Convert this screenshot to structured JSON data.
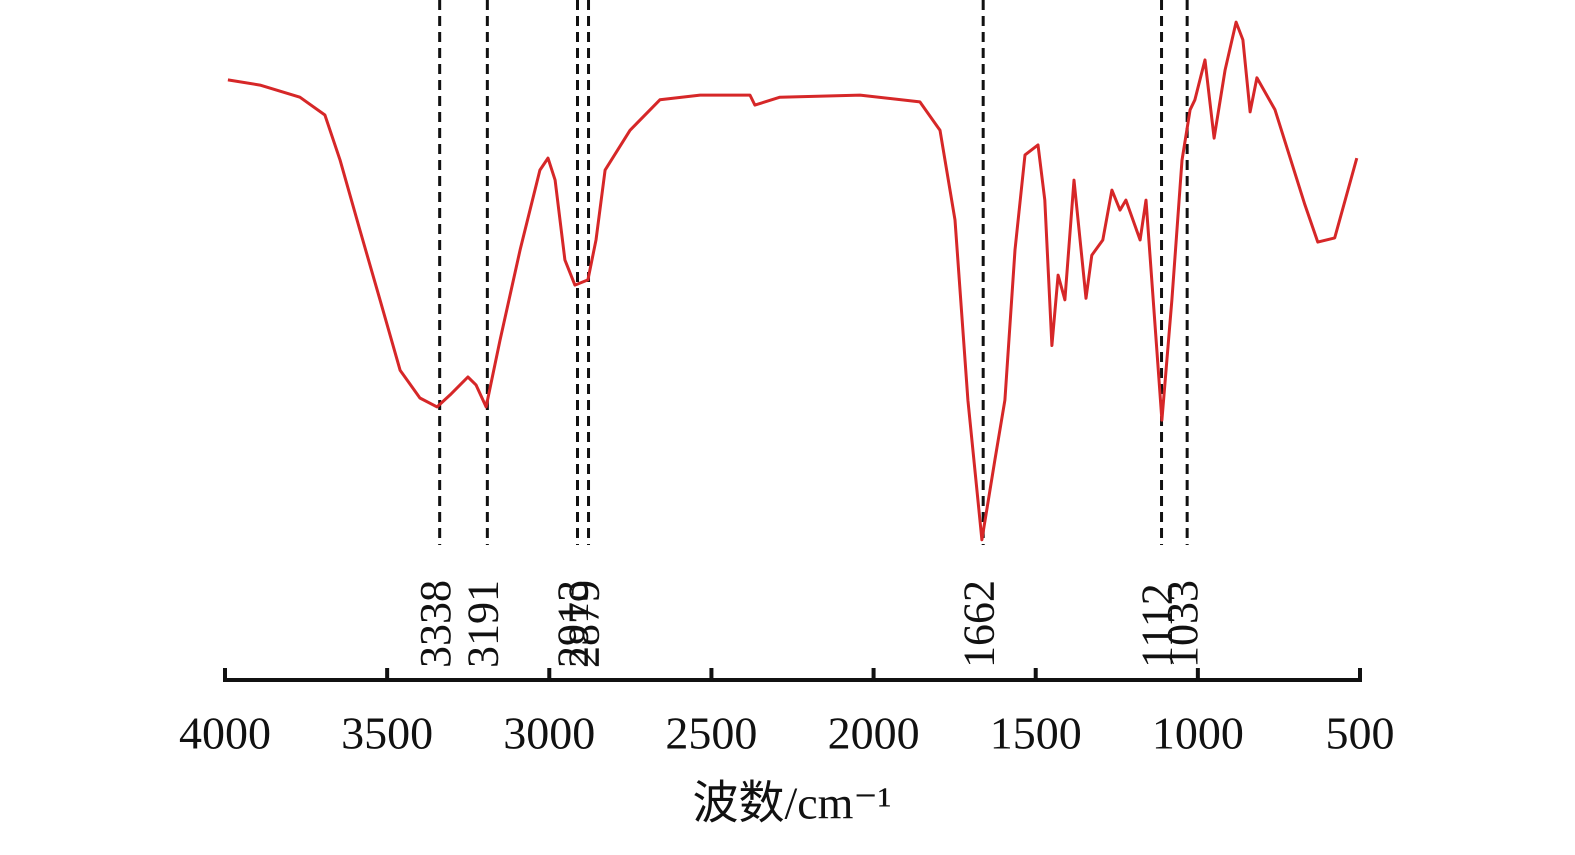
{
  "chart_data": {
    "type": "line",
    "xlabel": "波数/cm⁻¹",
    "xlim": [
      4000,
      500
    ],
    "xticks": [
      4000,
      3500,
      3000,
      2500,
      2000,
      1500,
      1000,
      500
    ],
    "ylim": [
      0,
      100
    ],
    "x": [
      3991,
      3892,
      3769,
      3692,
      3645,
      3584,
      3522,
      3460,
      3399,
      3346,
      3306,
      3251,
      3226,
      3195,
      3152,
      3090,
      3029,
      3004,
      2982,
      2952,
      2921,
      2881,
      2856,
      2828,
      2751,
      2659,
      2535,
      2381,
      2366,
      2289,
      2042,
      1857,
      1795,
      1749,
      1709,
      1666,
      1626,
      1595,
      1564,
      1533,
      1493,
      1472,
      1450,
      1431,
      1410,
      1382,
      1345,
      1327,
      1293,
      1265,
      1240,
      1222,
      1178,
      1160,
      1111,
      1080,
      1049,
      1024,
      1009,
      978,
      950,
      916,
      882,
      861,
      839,
      818,
      762,
      670,
      630,
      578,
      510
    ],
    "series": [
      {
        "color": "#d62728",
        "values": [
          88.6,
          87.6,
          85.3,
          81.9,
          73.3,
          60,
          46.7,
          33.3,
          28,
          26.3,
          28.6,
          32,
          30.5,
          26.3,
          39,
          56.2,
          71.4,
          73.7,
          69.5,
          54.3,
          49.5,
          50.5,
          58.1,
          71.4,
          79,
          84.8,
          85.7,
          85.7,
          83.8,
          85.3,
          85.7,
          84.4,
          79,
          61.9,
          27.6,
          1,
          16.2,
          27.6,
          56.2,
          74.3,
          76.2,
          65.7,
          38,
          51.4,
          46.7,
          69.5,
          47,
          55.2,
          58.1,
          67.6,
          63.8,
          65.7,
          58.1,
          65.7,
          23.8,
          46.7,
          73.3,
          82.9,
          84.8,
          92.4,
          77.5,
          90.5,
          99.6,
          96.2,
          82.5,
          89,
          82.9,
          64.8,
          57.7,
          58.5,
          73.7
        ]
      }
    ],
    "peaks": [
      3338,
      3191,
      2913,
      2879,
      1662,
      1112,
      1033
    ]
  }
}
